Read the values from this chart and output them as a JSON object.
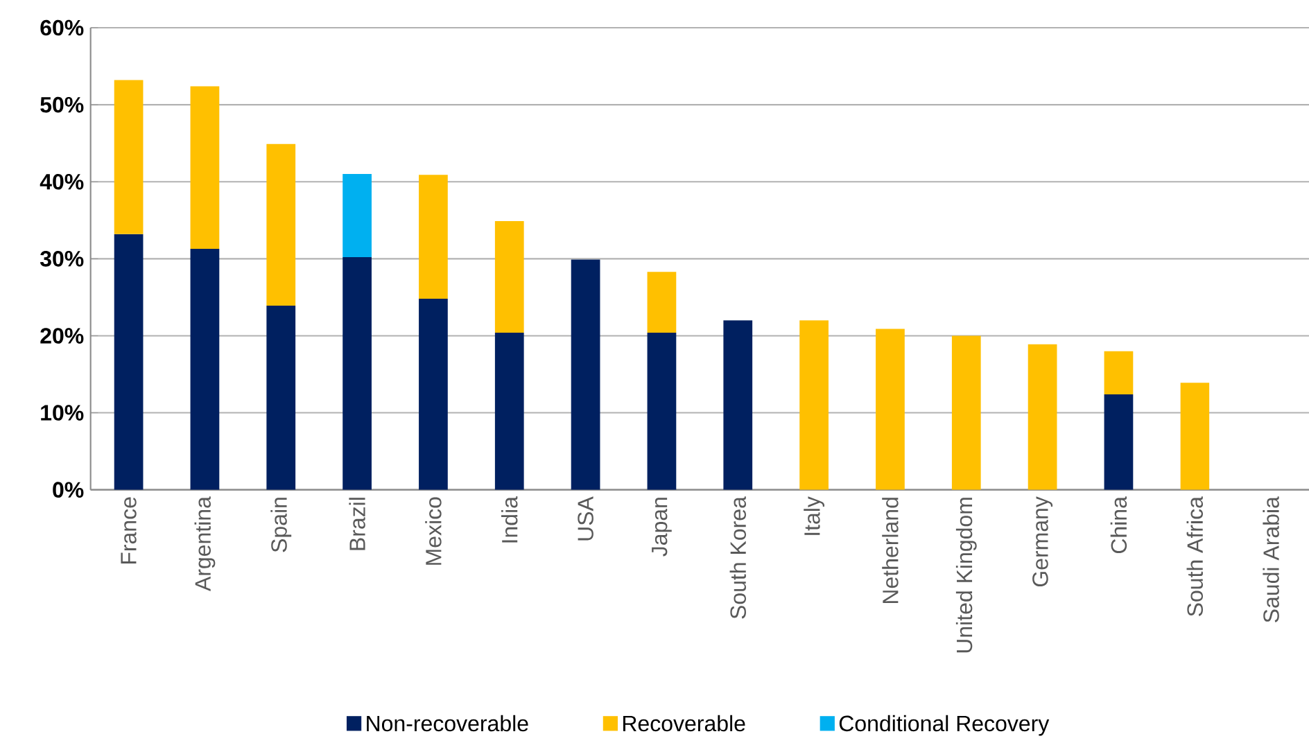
{
  "chart_data": {
    "type": "bar",
    "stacked": true,
    "categories": [
      "France",
      "Argentina",
      "Spain",
      "Brazil",
      "Mexico",
      "India",
      "USA",
      "Japan",
      "South Korea",
      "Italy",
      "Netherland",
      "United Kingdom",
      "Germany",
      "China",
      "South Africa",
      "Saudi Arabia"
    ],
    "series": [
      {
        "name": "Non-recoverable",
        "color": "#002060",
        "values": [
          33.2,
          31.3,
          23.9,
          30.2,
          24.8,
          20.4,
          29.9,
          20.4,
          22.0,
          null,
          null,
          null,
          null,
          12.4,
          null,
          null
        ]
      },
      {
        "name": "Recoverable",
        "color": "#ffc000",
        "values": [
          20.0,
          21.1,
          21.0,
          null,
          16.1,
          14.5,
          null,
          7.9,
          null,
          22.0,
          20.9,
          20.0,
          18.9,
          5.6,
          13.9,
          null
        ]
      },
      {
        "name": "Conditional Recovery",
        "color": "#00b0f0",
        "values": [
          null,
          null,
          null,
          10.8,
          null,
          null,
          null,
          null,
          null,
          null,
          null,
          null,
          null,
          null,
          null,
          null
        ]
      }
    ],
    "ylim": [
      0,
      60
    ],
    "yticks": [
      {
        "value": 0,
        "label": "0%"
      },
      {
        "value": 10,
        "label": "10%"
      },
      {
        "value": 20,
        "label": "20%"
      },
      {
        "value": 30,
        "label": "30%"
      },
      {
        "value": 40,
        "label": "40%"
      },
      {
        "value": 50,
        "label": "50%"
      },
      {
        "value": 60,
        "label": "60%"
      }
    ],
    "grid": "y",
    "legend": "bottom"
  }
}
